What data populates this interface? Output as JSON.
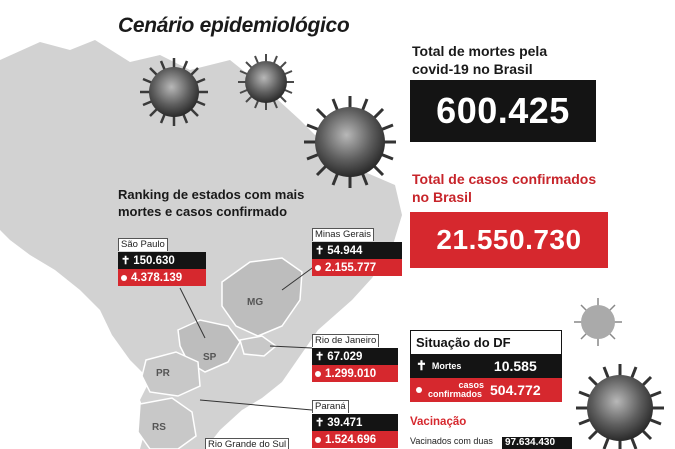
{
  "title": "Cenário epidemiológico",
  "deaths": {
    "label": "Total de mortes pela covid-19 no Brasil",
    "label_line1": "Total de mortes pela",
    "label_line2": "covid-19 no Brasil",
    "value": "600.425"
  },
  "cases": {
    "label_line1": "Total de casos confirmados",
    "label_line2": "no Brasil",
    "value": "21.550.730"
  },
  "ranking": {
    "title_line1": "Ranking de estados com mais",
    "title_line2": "mortes e casos confirmado",
    "states": [
      {
        "name": "São Paulo",
        "deaths": "150.630",
        "cases": "4.378.139"
      },
      {
        "name": "Minas Gerais",
        "deaths": "54.944",
        "cases": "2.155.777"
      },
      {
        "name": "Rio de Janeiro",
        "deaths": "67.029",
        "cases": "1.299.010"
      },
      {
        "name": "Paraná",
        "deaths": "39.471",
        "cases": "1.524.696"
      },
      {
        "name": "Rio Grande do Sul"
      }
    ]
  },
  "map_labels": {
    "mg": "MG",
    "sp": "SP",
    "pr": "PR",
    "rs": "RS"
  },
  "df": {
    "title": "Situação do DF",
    "deaths_label": "Mortes",
    "deaths": "10.585",
    "cases_label_line1": "casos",
    "cases_label_line2": "confirmados",
    "cases": "504.772"
  },
  "vaccination": {
    "title": "Vacinação",
    "text": "Vacinados com duas",
    "value": "97.634.430"
  },
  "symbols": {
    "cross": "✝"
  },
  "colors": {
    "red": "#d6282e",
    "black": "#141414",
    "map": "#d2d2d2"
  }
}
